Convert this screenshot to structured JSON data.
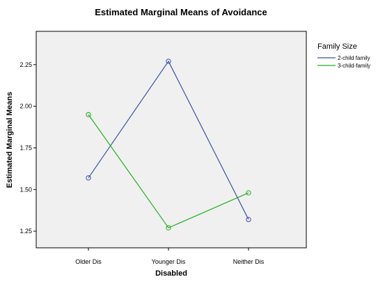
{
  "chart_data": {
    "type": "line",
    "title": "Estimated Marginal Means of Avoidance",
    "xlabel": "Disabled",
    "ylabel": "Estimated Marginal Means",
    "categories": [
      "Older Dis",
      "Younger Dis",
      "Neither Dis"
    ],
    "ylim": [
      1.15,
      2.45
    ],
    "yticks": [
      "1.25",
      "1.50",
      "1.75",
      "2.00",
      "2.25"
    ],
    "grid": false,
    "legend": {
      "title": "Family Size",
      "placement": "right"
    },
    "series": [
      {
        "name": "2-child family",
        "values": [
          1.57,
          2.27,
          1.32
        ],
        "color": "#3b53a4"
      },
      {
        "name": "3-child-family",
        "values": [
          1.95,
          1.27,
          1.48
        ],
        "color": "#21b021"
      }
    ],
    "plot_background": "#f0f0f0"
  }
}
